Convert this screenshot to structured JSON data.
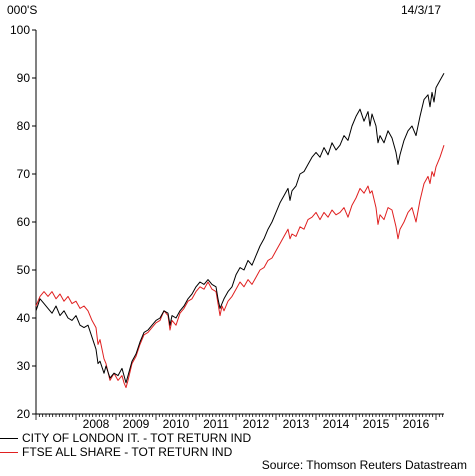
{
  "chart_data": {
    "type": "line",
    "unit_label": "000'S",
    "date_label": "14/3/17",
    "source": "Source: Thomson Reuters Datastream",
    "ylim": [
      20,
      100
    ],
    "y_ticks": [
      20,
      30,
      40,
      50,
      60,
      70,
      80,
      90,
      100
    ],
    "xlim": [
      2007.0,
      2017.2
    ],
    "x_tick_labels": [
      "2008",
      "2009",
      "2010",
      "2011",
      "2012",
      "2013",
      "2014",
      "2015",
      "2016"
    ],
    "grid": false,
    "legend_position": "bottom-left",
    "series": [
      {
        "name": "CITY OF LONDON IT. - TOT RETURN IND",
        "color": "#000000",
        "points": [
          [
            2007.0,
            41.5
          ],
          [
            2007.1,
            44.0
          ],
          [
            2007.2,
            43.0
          ],
          [
            2007.3,
            42.0
          ],
          [
            2007.4,
            41.0
          ],
          [
            2007.5,
            42.5
          ],
          [
            2007.6,
            40.5
          ],
          [
            2007.7,
            41.5
          ],
          [
            2007.8,
            40.0
          ],
          [
            2007.9,
            39.5
          ],
          [
            2008.0,
            40.5
          ],
          [
            2008.1,
            38.5
          ],
          [
            2008.2,
            38.0
          ],
          [
            2008.3,
            38.5
          ],
          [
            2008.4,
            36.0
          ],
          [
            2008.5,
            33.5
          ],
          [
            2008.55,
            30.5
          ],
          [
            2008.6,
            31.0
          ],
          [
            2008.7,
            28.5
          ],
          [
            2008.75,
            30.0
          ],
          [
            2008.85,
            27.5
          ],
          [
            2008.95,
            28.5
          ],
          [
            2009.05,
            28.0
          ],
          [
            2009.15,
            29.5
          ],
          [
            2009.2,
            28.0
          ],
          [
            2009.25,
            26.5
          ],
          [
            2009.3,
            28.0
          ],
          [
            2009.4,
            31.0
          ],
          [
            2009.5,
            32.5
          ],
          [
            2009.6,
            35.0
          ],
          [
            2009.7,
            37.0
          ],
          [
            2009.8,
            37.5
          ],
          [
            2009.9,
            38.5
          ],
          [
            2010.0,
            39.5
          ],
          [
            2010.1,
            40.0
          ],
          [
            2010.2,
            41.5
          ],
          [
            2010.3,
            41.0
          ],
          [
            2010.35,
            38.5
          ],
          [
            2010.4,
            40.5
          ],
          [
            2010.5,
            40.0
          ],
          [
            2010.6,
            41.5
          ],
          [
            2010.7,
            42.5
          ],
          [
            2010.8,
            44.0
          ],
          [
            2010.9,
            45.0
          ],
          [
            2011.0,
            46.5
          ],
          [
            2011.1,
            47.5
          ],
          [
            2011.2,
            47.0
          ],
          [
            2011.3,
            48.0
          ],
          [
            2011.4,
            47.0
          ],
          [
            2011.5,
            46.5
          ],
          [
            2011.55,
            44.0
          ],
          [
            2011.6,
            42.0
          ],
          [
            2011.65,
            43.0
          ],
          [
            2011.7,
            44.0
          ],
          [
            2011.8,
            45.5
          ],
          [
            2011.9,
            46.5
          ],
          [
            2012.0,
            49.0
          ],
          [
            2012.1,
            50.5
          ],
          [
            2012.2,
            50.0
          ],
          [
            2012.3,
            52.0
          ],
          [
            2012.4,
            51.0
          ],
          [
            2012.5,
            53.0
          ],
          [
            2012.6,
            55.0
          ],
          [
            2012.7,
            56.5
          ],
          [
            2012.8,
            58.5
          ],
          [
            2012.9,
            60.0
          ],
          [
            2013.0,
            62.0
          ],
          [
            2013.1,
            64.0
          ],
          [
            2013.2,
            65.5
          ],
          [
            2013.3,
            67.0
          ],
          [
            2013.35,
            64.5
          ],
          [
            2013.4,
            66.5
          ],
          [
            2013.5,
            67.5
          ],
          [
            2013.6,
            70.0
          ],
          [
            2013.7,
            70.5
          ],
          [
            2013.8,
            72.0
          ],
          [
            2013.9,
            73.5
          ],
          [
            2014.0,
            74.5
          ],
          [
            2014.1,
            73.5
          ],
          [
            2014.2,
            75.5
          ],
          [
            2014.3,
            74.0
          ],
          [
            2014.4,
            76.5
          ],
          [
            2014.5,
            75.0
          ],
          [
            2014.6,
            76.0
          ],
          [
            2014.7,
            78.0
          ],
          [
            2014.8,
            77.0
          ],
          [
            2014.9,
            80.0
          ],
          [
            2015.0,
            82.0
          ],
          [
            2015.1,
            83.5
          ],
          [
            2015.2,
            81.0
          ],
          [
            2015.3,
            83.0
          ],
          [
            2015.35,
            80.0
          ],
          [
            2015.4,
            82.5
          ],
          [
            2015.5,
            80.0
          ],
          [
            2015.55,
            76.5
          ],
          [
            2015.6,
            78.0
          ],
          [
            2015.7,
            76.5
          ],
          [
            2015.8,
            79.0
          ],
          [
            2015.9,
            77.5
          ],
          [
            2016.0,
            74.5
          ],
          [
            2016.05,
            72.0
          ],
          [
            2016.1,
            74.0
          ],
          [
            2016.2,
            77.0
          ],
          [
            2016.3,
            79.0
          ],
          [
            2016.4,
            80.0
          ],
          [
            2016.5,
            78.0
          ],
          [
            2016.6,
            82.0
          ],
          [
            2016.7,
            85.5
          ],
          [
            2016.8,
            86.5
          ],
          [
            2016.85,
            84.0
          ],
          [
            2016.9,
            87.0
          ],
          [
            2016.95,
            85.0
          ],
          [
            2017.0,
            88.0
          ],
          [
            2017.1,
            89.5
          ],
          [
            2017.2,
            91.0
          ]
        ]
      },
      {
        "name": "FTSE ALL SHARE - TOT RETURN IND",
        "color": "#e02020",
        "points": [
          [
            2007.0,
            42.5
          ],
          [
            2007.1,
            44.5
          ],
          [
            2007.2,
            45.5
          ],
          [
            2007.3,
            44.5
          ],
          [
            2007.4,
            45.5
          ],
          [
            2007.5,
            44.0
          ],
          [
            2007.6,
            45.0
          ],
          [
            2007.7,
            43.5
          ],
          [
            2007.8,
            44.5
          ],
          [
            2007.9,
            43.0
          ],
          [
            2008.0,
            43.5
          ],
          [
            2008.1,
            42.0
          ],
          [
            2008.2,
            42.5
          ],
          [
            2008.3,
            41.5
          ],
          [
            2008.4,
            39.5
          ],
          [
            2008.5,
            38.0
          ],
          [
            2008.55,
            34.5
          ],
          [
            2008.6,
            35.5
          ],
          [
            2008.7,
            31.5
          ],
          [
            2008.75,
            30.5
          ],
          [
            2008.85,
            27.0
          ],
          [
            2008.95,
            28.5
          ],
          [
            2009.05,
            27.0
          ],
          [
            2009.15,
            28.0
          ],
          [
            2009.2,
            26.5
          ],
          [
            2009.25,
            25.5
          ],
          [
            2009.3,
            27.0
          ],
          [
            2009.4,
            30.5
          ],
          [
            2009.5,
            32.0
          ],
          [
            2009.6,
            34.5
          ],
          [
            2009.7,
            36.5
          ],
          [
            2009.8,
            37.0
          ],
          [
            2009.9,
            38.0
          ],
          [
            2010.0,
            39.0
          ],
          [
            2010.1,
            39.5
          ],
          [
            2010.2,
            41.5
          ],
          [
            2010.3,
            40.5
          ],
          [
            2010.35,
            37.5
          ],
          [
            2010.4,
            39.5
          ],
          [
            2010.5,
            38.5
          ],
          [
            2010.6,
            41.0
          ],
          [
            2010.7,
            42.0
          ],
          [
            2010.8,
            43.5
          ],
          [
            2010.9,
            44.0
          ],
          [
            2011.0,
            45.5
          ],
          [
            2011.1,
            46.5
          ],
          [
            2011.2,
            46.0
          ],
          [
            2011.3,
            47.5
          ],
          [
            2011.4,
            46.0
          ],
          [
            2011.5,
            45.5
          ],
          [
            2011.55,
            43.0
          ],
          [
            2011.6,
            40.5
          ],
          [
            2011.65,
            42.5
          ],
          [
            2011.7,
            41.5
          ],
          [
            2011.8,
            43.5
          ],
          [
            2011.9,
            44.5
          ],
          [
            2012.0,
            46.0
          ],
          [
            2012.1,
            47.5
          ],
          [
            2012.2,
            46.5
          ],
          [
            2012.3,
            48.0
          ],
          [
            2012.4,
            47.0
          ],
          [
            2012.5,
            48.5
          ],
          [
            2012.6,
            50.0
          ],
          [
            2012.7,
            50.5
          ],
          [
            2012.8,
            52.0
          ],
          [
            2012.9,
            52.5
          ],
          [
            2013.0,
            54.0
          ],
          [
            2013.1,
            55.5
          ],
          [
            2013.2,
            57.0
          ],
          [
            2013.3,
            58.5
          ],
          [
            2013.35,
            56.5
          ],
          [
            2013.4,
            57.5
          ],
          [
            2013.5,
            57.0
          ],
          [
            2013.6,
            59.0
          ],
          [
            2013.7,
            58.5
          ],
          [
            2013.8,
            60.5
          ],
          [
            2013.9,
            61.0
          ],
          [
            2014.0,
            62.0
          ],
          [
            2014.1,
            60.5
          ],
          [
            2014.2,
            62.0
          ],
          [
            2014.3,
            61.0
          ],
          [
            2014.4,
            62.5
          ],
          [
            2014.5,
            61.5
          ],
          [
            2014.6,
            62.0
          ],
          [
            2014.7,
            63.0
          ],
          [
            2014.8,
            61.0
          ],
          [
            2014.9,
            63.5
          ],
          [
            2015.0,
            65.0
          ],
          [
            2015.1,
            67.0
          ],
          [
            2015.2,
            66.0
          ],
          [
            2015.3,
            67.5
          ],
          [
            2015.35,
            66.0
          ],
          [
            2015.4,
            66.5
          ],
          [
            2015.5,
            63.0
          ],
          [
            2015.55,
            59.5
          ],
          [
            2015.6,
            61.5
          ],
          [
            2015.7,
            60.5
          ],
          [
            2015.8,
            63.0
          ],
          [
            2015.9,
            62.5
          ],
          [
            2016.0,
            59.0
          ],
          [
            2016.05,
            56.5
          ],
          [
            2016.1,
            58.5
          ],
          [
            2016.2,
            60.0
          ],
          [
            2016.3,
            62.0
          ],
          [
            2016.4,
            63.0
          ],
          [
            2016.5,
            60.0
          ],
          [
            2016.6,
            64.5
          ],
          [
            2016.7,
            68.0
          ],
          [
            2016.8,
            69.5
          ],
          [
            2016.85,
            68.0
          ],
          [
            2016.9,
            70.5
          ],
          [
            2016.95,
            69.5
          ],
          [
            2017.0,
            71.5
          ],
          [
            2017.1,
            73.5
          ],
          [
            2017.2,
            76.0
          ]
        ]
      }
    ]
  }
}
